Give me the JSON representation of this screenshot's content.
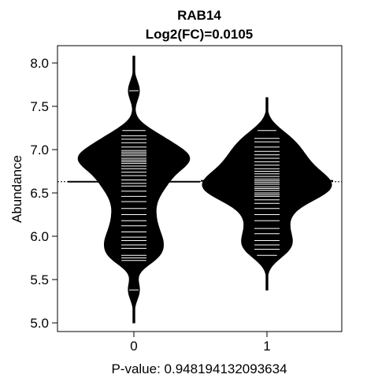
{
  "chart_data": {
    "type": "beanplot",
    "title": "RAB14",
    "subtitle": "Log2(FC)=0.0105",
    "xlabel": "P-value: 0.948194132093634",
    "ylabel": "Abundance",
    "categories": [
      "0",
      "1"
    ],
    "ylim": [
      4.9,
      8.2
    ],
    "yticks": [
      5.0,
      5.5,
      6.0,
      6.5,
      7.0,
      7.5,
      8.0
    ],
    "ytick_labels": [
      "5.0",
      "5.5",
      "6.0",
      "6.5",
      "7.0",
      "7.5",
      "8.0"
    ],
    "overall_mean": 6.63,
    "colors": {
      "bean": "#000000",
      "line": "#ffffff",
      "background": "#ffffff"
    },
    "series": [
      {
        "category": "0",
        "mean": 6.63,
        "range": [
          5.0,
          8.08
        ],
        "observations": [
          5.38,
          5.72,
          5.75,
          5.78,
          5.86,
          5.9,
          5.95,
          5.99,
          6.05,
          6.12,
          6.18,
          6.25,
          6.32,
          6.4,
          6.46,
          6.52,
          6.58,
          6.61,
          6.65,
          6.7,
          6.74,
          6.78,
          6.81,
          6.84,
          6.86,
          6.88,
          6.9,
          6.93,
          6.95,
          6.97,
          6.99,
          7.03,
          7.08,
          7.12,
          7.16,
          7.22,
          7.68
        ]
      },
      {
        "category": "1",
        "mean": 6.64,
        "range": [
          5.38,
          7.6
        ],
        "observations": [
          5.78,
          5.85,
          5.9,
          5.95,
          6.03,
          6.09,
          6.18,
          6.25,
          6.32,
          6.38,
          6.42,
          6.46,
          6.48,
          6.5,
          6.53,
          6.55,
          6.57,
          6.6,
          6.62,
          6.64,
          6.66,
          6.69,
          6.72,
          6.75,
          6.78,
          6.82,
          6.86,
          6.9,
          6.94,
          6.98,
          7.03,
          7.09,
          7.13,
          7.22
        ]
      }
    ]
  }
}
